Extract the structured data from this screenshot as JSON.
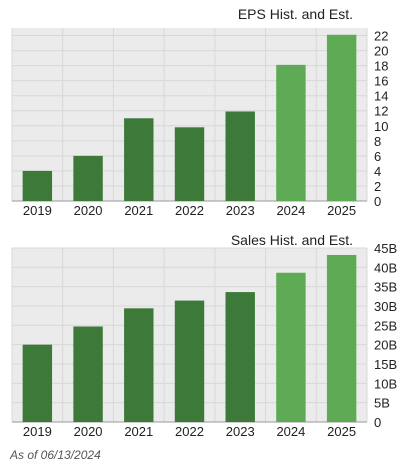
{
  "chart_data": [
    {
      "type": "bar",
      "title": "EPS Hist. and Est.",
      "categories": [
        "2019",
        "2020",
        "2021",
        "2022",
        "2023",
        "2024",
        "2025"
      ],
      "values": [
        4.0,
        6.0,
        11.0,
        9.8,
        11.9,
        18.1,
        22.1
      ],
      "estimate_flags": [
        false,
        false,
        false,
        false,
        false,
        true,
        true
      ],
      "y_ticks": [
        "0",
        "2",
        "4",
        "6",
        "8",
        "10",
        "12",
        "14",
        "16",
        "18",
        "20",
        "22"
      ],
      "ylim": [
        0,
        23
      ],
      "grid": true,
      "colors": {
        "historical": "#3d7a3a",
        "estimate": "#5eaa55",
        "plot_bg": "#ebebeb",
        "grid": "#d8d8d8"
      }
    },
    {
      "type": "bar",
      "title": "Sales Hist. and Est.",
      "categories": [
        "2019",
        "2020",
        "2021",
        "2022",
        "2023",
        "2024",
        "2025"
      ],
      "values": [
        20.0,
        24.7,
        29.4,
        31.4,
        33.6,
        38.6,
        43.2
      ],
      "estimate_flags": [
        false,
        false,
        false,
        false,
        false,
        true,
        true
      ],
      "y_ticks": [
        "0",
        "5B",
        "10B",
        "15B",
        "20B",
        "25B",
        "30B",
        "35B",
        "40B",
        "45B"
      ],
      "ylim": [
        0,
        45
      ],
      "grid": true,
      "colors": {
        "historical": "#3d7a3a",
        "estimate": "#5eaa55",
        "plot_bg": "#ebebeb",
        "grid": "#d8d8d8"
      }
    }
  ],
  "footer": {
    "as_of": "As of 06/13/2024"
  }
}
